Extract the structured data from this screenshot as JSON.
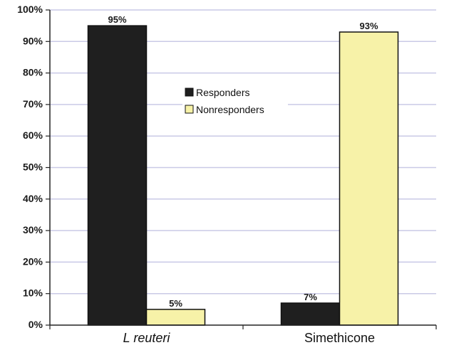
{
  "chart_data": {
    "type": "bar",
    "categories": [
      "L reuteri",
      "Simethicone"
    ],
    "series": [
      {
        "name": "Responders",
        "values": [
          95,
          7
        ],
        "color": "#1f1f1f"
      },
      {
        "name": "Nonresponders",
        "values": [
          5,
          93
        ],
        "color": "#f7f2a8"
      }
    ],
    "data_labels": [
      [
        "95%",
        "7%"
      ],
      [
        "5%",
        "93%"
      ]
    ],
    "y_ticks": [
      "0%",
      "10%",
      "20%",
      "30%",
      "40%",
      "50%",
      "60%",
      "70%",
      "80%",
      "90%",
      "100%"
    ],
    "ylim": [
      0,
      100
    ],
    "grid": true,
    "grid_color": "#c9c9e6",
    "legend_position": "upper-center",
    "category_style": [
      "italic",
      "normal"
    ]
  }
}
